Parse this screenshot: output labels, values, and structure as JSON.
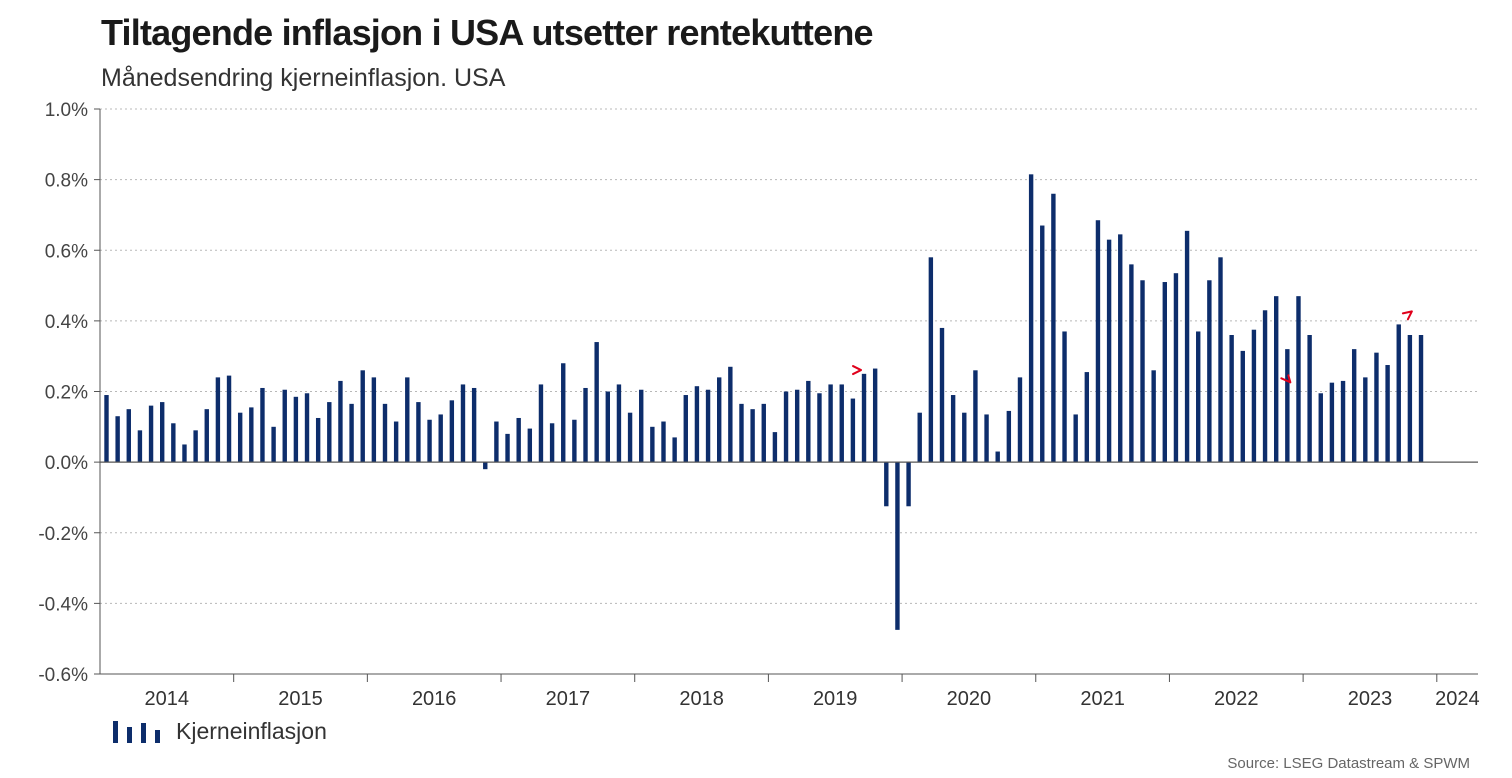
{
  "header": {
    "title": "Tiltagende inflasjon i USA utsetter rentekuttene",
    "subtitle": "Månedsendring kjerneinflasjon. USA"
  },
  "legend": {
    "label": "Kjerneinflasjon"
  },
  "source": "Source: LSEG Datastream & SPWM",
  "colors": {
    "bar": "#0d2d6b",
    "marker": "#e0001b",
    "grid": "#b8b8b8",
    "axis": "#555555"
  },
  "chart_data": {
    "type": "bar",
    "x_start": "2014-01",
    "frequency": "monthly",
    "ylim": [
      -0.6,
      1.0
    ],
    "y_ticks": [
      "1.0%",
      "0.8%",
      "0.6%",
      "0.4%",
      "0.2%",
      "0.0%",
      "-0.2%",
      "-0.4%",
      "-0.6%"
    ],
    "y_tick_values": [
      1.0,
      0.8,
      0.6,
      0.4,
      0.2,
      0.0,
      -0.2,
      -0.4,
      -0.6
    ],
    "year_labels": [
      "2014",
      "2015",
      "2016",
      "2017",
      "2018",
      "2019",
      "2020",
      "2021",
      "2022",
      "2023",
      "2024"
    ],
    "grid": "horizontal dotted",
    "series": [
      {
        "name": "Kjerneinflasjon",
        "values": [
          0.19,
          0.13,
          0.15,
          0.09,
          0.16,
          0.17,
          0.11,
          0.05,
          0.09,
          0.15,
          0.24,
          0.245,
          0.14,
          0.155,
          0.21,
          0.1,
          0.205,
          0.185,
          0.195,
          0.125,
          0.17,
          0.23,
          0.165,
          0.26,
          0.24,
          0.165,
          0.115,
          0.24,
          0.17,
          0.12,
          0.135,
          0.175,
          0.22,
          0.21,
          -0.02,
          0.115,
          0.08,
          0.125,
          0.095,
          0.22,
          0.11,
          0.28,
          0.12,
          0.21,
          0.34,
          0.2,
          0.22,
          0.14,
          0.205,
          0.1,
          0.115,
          0.07,
          0.19,
          0.215,
          0.205,
          0.24,
          0.27,
          0.165,
          0.15,
          0.165,
          0.085,
          0.2,
          0.205,
          0.23,
          0.195,
          0.22,
          0.22,
          0.18,
          0.25,
          0.265,
          -0.125,
          -0.475,
          -0.125,
          0.14,
          0.58,
          0.38,
          0.19,
          0.14,
          0.26,
          0.135,
          0.03,
          0.145,
          0.24,
          0.815,
          0.67,
          0.76,
          0.37,
          0.135,
          0.255,
          0.685,
          0.63,
          0.645,
          0.56,
          0.515,
          0.26,
          0.51,
          0.535,
          0.655,
          0.37,
          0.515,
          0.58,
          0.36,
          0.315,
          0.375,
          0.43,
          0.47,
          0.32,
          0.47,
          0.36,
          0.195,
          0.225,
          0.23,
          0.32,
          0.24,
          0.31,
          0.275,
          0.39,
          0.36,
          0.36
        ]
      }
    ],
    "markers": [
      {
        "description": "red arrow",
        "month_index": 68,
        "value": 0.255
      },
      {
        "description": "red arrow",
        "month_index": 106,
        "value": 0.26
      },
      {
        "description": "red arrow",
        "month_index": 117,
        "value": 0.41
      }
    ]
  }
}
